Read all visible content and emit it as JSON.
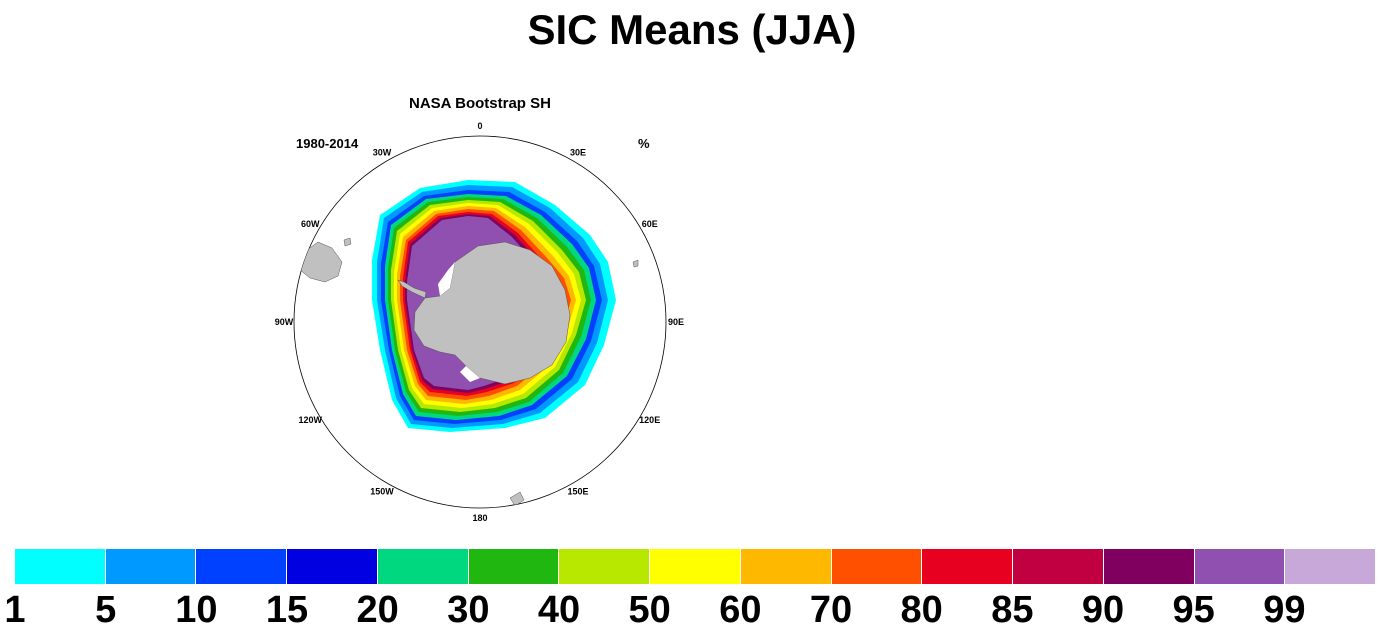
{
  "title": "SIC Means (JJA)",
  "panel": {
    "subtitle": "NASA Bootstrap SH",
    "period": "1980-2014",
    "units": "%"
  },
  "longitude_labels": [
    "0",
    "30E",
    "60E",
    "90E",
    "120E",
    "150E",
    "180",
    "150W",
    "120W",
    "90W",
    "60W",
    "30W"
  ],
  "colorbar": {
    "labels": [
      "1",
      "5",
      "10",
      "15",
      "20",
      "30",
      "40",
      "50",
      "60",
      "70",
      "80",
      "85",
      "90",
      "95",
      "99"
    ],
    "colors": [
      "#00ffff",
      "#0099ff",
      "#0040ff",
      "#0000e0",
      "#00d880",
      "#20b810",
      "#b8e800",
      "#ffff00",
      "#ffb800",
      "#ff5000",
      "#e80020",
      "#c00040",
      "#800060",
      "#9050b0",
      "#c8a8d8"
    ]
  },
  "colors": {
    "land": "#c0c0c0",
    "ice_core": "#9050b0",
    "ocean": "#ffffff"
  }
}
